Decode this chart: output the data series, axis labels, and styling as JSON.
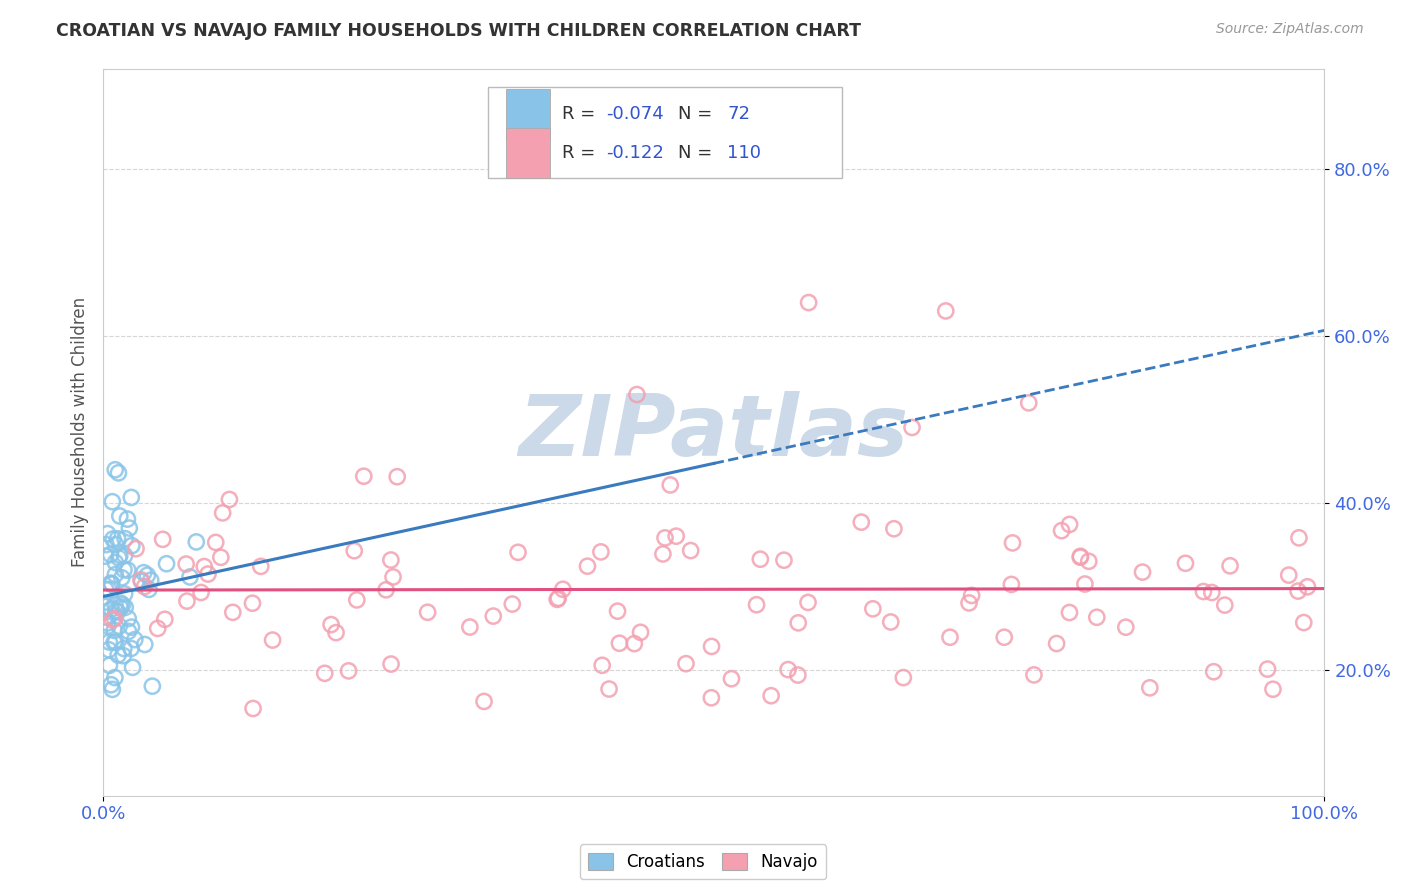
{
  "title": "CROATIAN VS NAVAJO FAMILY HOUSEHOLDS WITH CHILDREN CORRELATION CHART",
  "source": "Source: ZipAtlas.com",
  "ylabel": "Family Households with Children",
  "xlim": [
    0.0,
    1.0
  ],
  "ylim": [
    0.05,
    0.92
  ],
  "ytick_vals": [
    0.2,
    0.4,
    0.6,
    0.8
  ],
  "yticklabels": [
    "20.0%",
    "40.0%",
    "60.0%",
    "80.0%"
  ],
  "xticklabels": [
    "0.0%",
    "100.0%"
  ],
  "croatian_R": -0.074,
  "croatian_N": 72,
  "navajo_R": -0.122,
  "navajo_N": 110,
  "croatian_color": "#89c4e8",
  "navajo_color": "#f4a0b0",
  "trend_croatian_color": "#3a7abf",
  "trend_navajo_color": "#e05080",
  "background_color": "#ffffff",
  "grid_color": "#bbbbbb",
  "title_color": "#333333",
  "axis_label_color": "#555555",
  "tick_color": "#4169E1",
  "watermark": "ZIPatlas",
  "watermark_color": "#ccd9e8",
  "legend_label_color": "#333333",
  "legend_R_color": "#3355cc"
}
